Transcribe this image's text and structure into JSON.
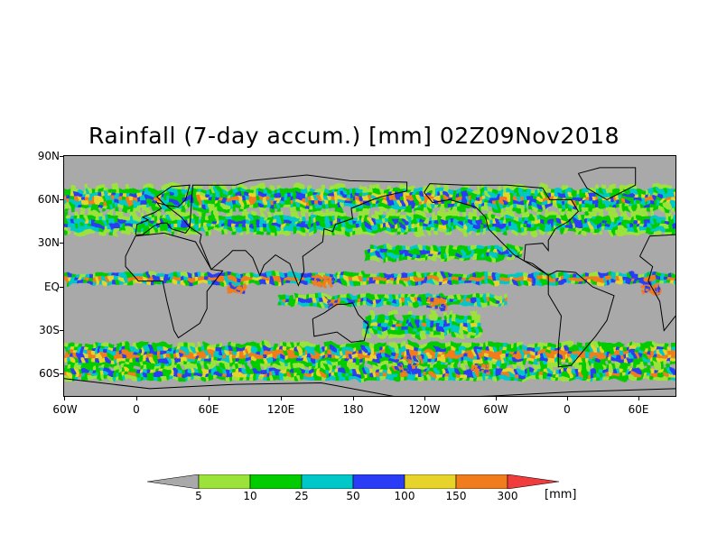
{
  "title": "Rainfall (7-day accum.) [mm] 02Z09Nov2018",
  "y_axis": [
    "90N",
    "60N",
    "30N",
    "EQ",
    "30S",
    "60S"
  ],
  "x_axis": [
    "60W",
    "0",
    "60E",
    "120E",
    "180",
    "120W",
    "60W",
    "0",
    "60E"
  ],
  "legend": {
    "levels": [
      "5",
      "10",
      "25",
      "50",
      "100",
      "150",
      "300"
    ],
    "unit": "[mm]",
    "colors": [
      "#a9a9a9",
      "#9be33a",
      "#00cc00",
      "#00c8c8",
      "#2a3cf5",
      "#e6d42a",
      "#f07c1e",
      "#f03c3c"
    ]
  }
}
